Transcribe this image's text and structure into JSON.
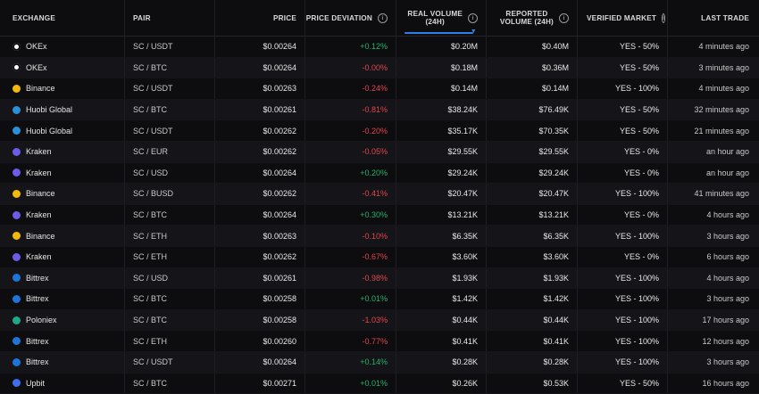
{
  "headers": {
    "exchange": "EXCHANGE",
    "pair": "PAIR",
    "price": "PRICE",
    "deviation": "PRICE DEVIATION",
    "real_volume_1": "REAL VOLUME",
    "real_volume_2": "(24H)",
    "reported_1": "REPORTED",
    "reported_2": "VOLUME (24H)",
    "verified": "VERIFIED MARKET",
    "last_trade": "LAST TRADE"
  },
  "colors": {
    "positive": "#24b36b",
    "negative": "#e0454d",
    "accent": "#2e7de9"
  },
  "rows": [
    {
      "exchange": "OKEx",
      "icon": "okex-icon",
      "icon_color": "#ffffff",
      "pair": "SC / USDT",
      "price": "$0.00264",
      "deviation": "+0.12%",
      "dev_sign": "pos",
      "real_volume": "$0.20M",
      "reported": "$0.40M",
      "verified": "YES - 50%",
      "last": "4 minutes ago"
    },
    {
      "exchange": "OKEx",
      "icon": "okex-icon",
      "icon_color": "#ffffff",
      "pair": "SC / BTC",
      "price": "$0.00264",
      "deviation": "-0.00%",
      "dev_sign": "neg",
      "real_volume": "$0.18M",
      "reported": "$0.36M",
      "verified": "YES - 50%",
      "last": "3 minutes ago"
    },
    {
      "exchange": "Binance",
      "icon": "binance-icon",
      "icon_color": "#f0b90b",
      "pair": "SC / USDT",
      "price": "$0.00263",
      "deviation": "-0.24%",
      "dev_sign": "neg",
      "real_volume": "$0.14M",
      "reported": "$0.14M",
      "verified": "YES - 100%",
      "last": "4 minutes ago"
    },
    {
      "exchange": "Huobi Global",
      "icon": "huobi-icon",
      "icon_color": "#2a90d8",
      "pair": "SC / BTC",
      "price": "$0.00261",
      "deviation": "-0.81%",
      "dev_sign": "neg",
      "real_volume": "$38.24K",
      "reported": "$76.49K",
      "verified": "YES - 50%",
      "last": "32 minutes ago"
    },
    {
      "exchange": "Huobi Global",
      "icon": "huobi-icon",
      "icon_color": "#2a90d8",
      "pair": "SC / USDT",
      "price": "$0.00262",
      "deviation": "-0.20%",
      "dev_sign": "neg",
      "real_volume": "$35.17K",
      "reported": "$70.35K",
      "verified": "YES - 50%",
      "last": "21 minutes ago"
    },
    {
      "exchange": "Kraken",
      "icon": "kraken-icon",
      "icon_color": "#6b5ce7",
      "pair": "SC / EUR",
      "price": "$0.00262",
      "deviation": "-0.05%",
      "dev_sign": "neg",
      "real_volume": "$29.55K",
      "reported": "$29.55K",
      "verified": "YES - 0%",
      "last": "an hour ago"
    },
    {
      "exchange": "Kraken",
      "icon": "kraken-icon",
      "icon_color": "#6b5ce7",
      "pair": "SC / USD",
      "price": "$0.00264",
      "deviation": "+0.20%",
      "dev_sign": "pos",
      "real_volume": "$29.24K",
      "reported": "$29.24K",
      "verified": "YES - 0%",
      "last": "an hour ago"
    },
    {
      "exchange": "Binance",
      "icon": "binance-icon",
      "icon_color": "#f0b90b",
      "pair": "SC / BUSD",
      "price": "$0.00262",
      "deviation": "-0.41%",
      "dev_sign": "neg",
      "real_volume": "$20.47K",
      "reported": "$20.47K",
      "verified": "YES - 100%",
      "last": "41 minutes ago"
    },
    {
      "exchange": "Kraken",
      "icon": "kraken-icon",
      "icon_color": "#6b5ce7",
      "pair": "SC / BTC",
      "price": "$0.00264",
      "deviation": "+0.30%",
      "dev_sign": "pos",
      "real_volume": "$13.21K",
      "reported": "$13.21K",
      "verified": "YES - 0%",
      "last": "4 hours ago"
    },
    {
      "exchange": "Binance",
      "icon": "binance-icon",
      "icon_color": "#f0b90b",
      "pair": "SC / ETH",
      "price": "$0.00263",
      "deviation": "-0.10%",
      "dev_sign": "neg",
      "real_volume": "$6.35K",
      "reported": "$6.35K",
      "verified": "YES - 100%",
      "last": "3 hours ago"
    },
    {
      "exchange": "Kraken",
      "icon": "kraken-icon",
      "icon_color": "#6b5ce7",
      "pair": "SC / ETH",
      "price": "$0.00262",
      "deviation": "-0.67%",
      "dev_sign": "neg",
      "real_volume": "$3.60K",
      "reported": "$3.60K",
      "verified": "YES - 0%",
      "last": "6 hours ago"
    },
    {
      "exchange": "Bittrex",
      "icon": "bittrex-icon",
      "icon_color": "#1e74d8",
      "pair": "SC / USD",
      "price": "$0.00261",
      "deviation": "-0.98%",
      "dev_sign": "neg",
      "real_volume": "$1.93K",
      "reported": "$1.93K",
      "verified": "YES - 100%",
      "last": "4 hours ago"
    },
    {
      "exchange": "Bittrex",
      "icon": "bittrex-icon",
      "icon_color": "#1e74d8",
      "pair": "SC / BTC",
      "price": "$0.00258",
      "deviation": "+0.01%",
      "dev_sign": "pos",
      "real_volume": "$1.42K",
      "reported": "$1.42K",
      "verified": "YES - 100%",
      "last": "3 hours ago"
    },
    {
      "exchange": "Poloniex",
      "icon": "poloniex-icon",
      "icon_color": "#1ea889",
      "pair": "SC / BTC",
      "price": "$0.00258",
      "deviation": "-1.03%",
      "dev_sign": "neg",
      "real_volume": "$0.44K",
      "reported": "$0.44K",
      "verified": "YES - 100%",
      "last": "17 hours ago"
    },
    {
      "exchange": "Bittrex",
      "icon": "bittrex-icon",
      "icon_color": "#1e74d8",
      "pair": "SC / ETH",
      "price": "$0.00260",
      "deviation": "-0.77%",
      "dev_sign": "neg",
      "real_volume": "$0.41K",
      "reported": "$0.41K",
      "verified": "YES - 100%",
      "last": "12 hours ago"
    },
    {
      "exchange": "Bittrex",
      "icon": "bittrex-icon",
      "icon_color": "#1e74d8",
      "pair": "SC / USDT",
      "price": "$0.00264",
      "deviation": "+0.14%",
      "dev_sign": "pos",
      "real_volume": "$0.28K",
      "reported": "$0.28K",
      "verified": "YES - 100%",
      "last": "3 hours ago"
    },
    {
      "exchange": "Upbit",
      "icon": "upbit-icon",
      "icon_color": "#3a6ff0",
      "pair": "SC / BTC",
      "price": "$0.00271",
      "deviation": "+0.01%",
      "dev_sign": "pos",
      "real_volume": "$0.26K",
      "reported": "$0.53K",
      "verified": "YES - 50%",
      "last": "16 hours ago"
    }
  ]
}
